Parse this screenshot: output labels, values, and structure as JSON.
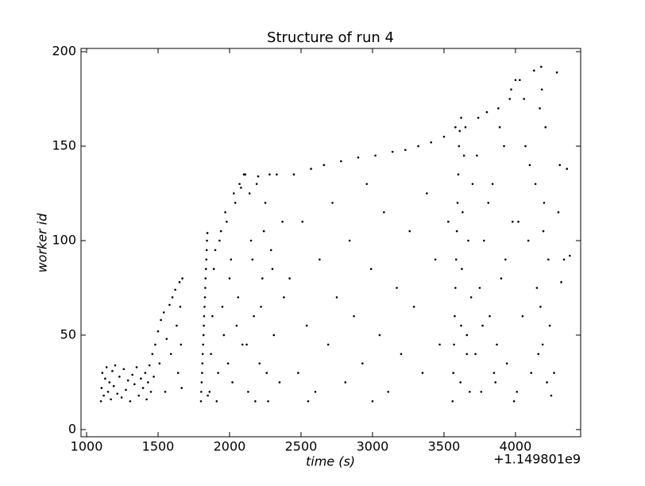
{
  "chart_data": {
    "type": "scatter",
    "title": "Structure of run 4",
    "x_label": "time (s)",
    "y_label": "worker id",
    "x_offset_label": "+1.149801e9",
    "xlim": [
      961,
      4456
    ],
    "ylim": [
      -3.8,
      201.7
    ],
    "xticks": [
      1000,
      1500,
      2000,
      2500,
      3000,
      3500,
      4000
    ],
    "yticks": [
      0,
      50,
      100,
      150,
      200
    ],
    "color": "#000000",
    "x": [
      1100,
      1105,
      1110,
      1120,
      1130,
      1140,
      1150,
      1160,
      1170,
      1180,
      1190,
      1200,
      1215,
      1230,
      1245,
      1260,
      1275,
      1290,
      1305,
      1320,
      1335,
      1350,
      1365,
      1380,
      1395,
      1410,
      1420,
      1430,
      1440,
      1450,
      1460,
      1470,
      1480,
      1500,
      1510,
      1520,
      1540,
      1550,
      1560,
      1580,
      1590,
      1600,
      1620,
      1630,
      1640,
      1650,
      1655,
      1660,
      1665,
      1670,
      1800,
      1805,
      1810,
      1815,
      1820,
      1825,
      1830,
      1835,
      1840,
      1845,
      1802,
      1808,
      1812,
      1818,
      1822,
      1828,
      1832,
      1838,
      1842,
      1848,
      1860,
      1880,
      1900,
      1920,
      1940,
      1960,
      1980,
      2000,
      2020,
      2040,
      2060,
      2080,
      2100,
      1870,
      1890,
      1910,
      1930,
      1950,
      1970,
      1990,
      2010,
      2030,
      2050,
      2070,
      2090,
      2110,
      2130,
      2150,
      2170,
      2190,
      2210,
      2230,
      2250,
      2270,
      2290,
      2310,
      2330,
      2350,
      2370,
      2380,
      2120,
      2140,
      2160,
      2180,
      2200,
      2220,
      2240,
      2260,
      2280,
      2300,
      2420,
      2450,
      2480,
      2510,
      2540,
      2570,
      2600,
      2630,
      2660,
      2690,
      2720,
      2750,
      2780,
      2810,
      2840,
      2870,
      2900,
      2930,
      2960,
      2990,
      3020,
      3050,
      3080,
      3110,
      3140,
      3170,
      3200,
      3230,
      3260,
      3290,
      3320,
      3350,
      3380,
      3410,
      3440,
      3470,
      3500,
      3530,
      2550,
      3000,
      3560,
      3565,
      3570,
      3575,
      3580,
      3585,
      3590,
      3595,
      3600,
      3605,
      3610,
      3615,
      3620,
      3625,
      3630,
      3640,
      3650,
      3660,
      3670,
      3680,
      3690,
      3700,
      3580,
      3620,
      3660,
      3720,
      3740,
      3760,
      3780,
      3800,
      3820,
      3840,
      3860,
      3880,
      3900,
      3920,
      3940,
      3960,
      3980,
      4000,
      3730,
      3770,
      3810,
      3850,
      3890,
      3930,
      3970,
      3750,
      3870,
      3990,
      4010,
      4030,
      4050,
      4070,
      4090,
      4110,
      4130,
      4150,
      4170,
      4180,
      4190,
      4200,
      4210,
      4220,
      4230,
      4240,
      4250,
      4140,
      4160,
      4185,
      4195,
      4175,
      4100,
      4060,
      4020,
      4270,
      4300,
      4310,
      4320,
      4340,
      4360,
      4380,
      4290
    ],
    "y": [
      15,
      22,
      30,
      18,
      27,
      33,
      20,
      25,
      16,
      31,
      23,
      34,
      19,
      28,
      17,
      32,
      21,
      26,
      15,
      29,
      24,
      33,
      18,
      27,
      22,
      30,
      16,
      25,
      34,
      20,
      40,
      28,
      45,
      52,
      35,
      58,
      62,
      20,
      48,
      66,
      40,
      70,
      74,
      55,
      30,
      78,
      65,
      45,
      22,
      80,
      15,
      25,
      35,
      45,
      55,
      65,
      75,
      85,
      95,
      104,
      20,
      30,
      40,
      50,
      60,
      70,
      80,
      90,
      100,
      18,
      20,
      60,
      95,
      30,
      105,
      50,
      110,
      80,
      25,
      120,
      70,
      128,
      135,
      40,
      85,
      15,
      100,
      65,
      115,
      35,
      90,
      125,
      55,
      130,
      45,
      135,
      20,
      100,
      60,
      130,
      35,
      80,
      120,
      15,
      95,
      50,
      135,
      25,
      110,
      70,
      45,
      125,
      90,
      15,
      134,
      65,
      105,
      30,
      135,
      85,
      80,
      135,
      30,
      110,
      55,
      138,
      20,
      90,
      140,
      45,
      120,
      70,
      142,
      25,
      100,
      60,
      144,
      35,
      130,
      85,
      145,
      50,
      115,
      20,
      147,
      75,
      40,
      148,
      105,
      65,
      150,
      30,
      125,
      152,
      90,
      45,
      155,
      110,
      15,
      15,
      15,
      30,
      45,
      60,
      75,
      90,
      105,
      120,
      135,
      150,
      158,
      25,
      55,
      85,
      115,
      145,
      160,
      40,
      100,
      20,
      70,
      130,
      160,
      165,
      50,
      40,
      165,
      20,
      100,
      168,
      60,
      130,
      25,
      170,
      80,
      150,
      35,
      175,
      110,
      185,
      145,
      55,
      120,
      30,
      160,
      90,
      180,
      75,
      45,
      15,
      20,
      185,
      60,
      150,
      100,
      30,
      190,
      75,
      170,
      192,
      45,
      120,
      160,
      25,
      90,
      55,
      18,
      130,
      40,
      180,
      105,
      65,
      140,
      175,
      110,
      30,
      115,
      140,
      78,
      90,
      138,
      92,
      189
    ]
  }
}
